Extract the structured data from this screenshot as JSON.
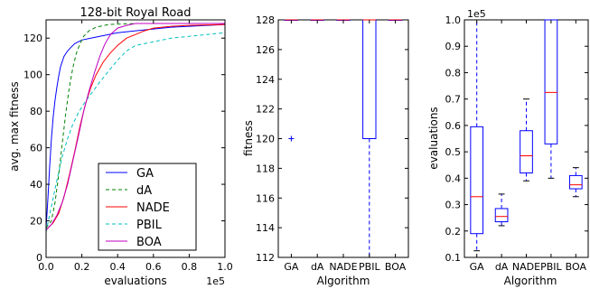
{
  "chart_data": [
    {
      "type": "line",
      "title": "128-bit Royal Road",
      "xlabel": "evaluations",
      "ylabel": "avg. max fitness",
      "x_offset_label": "1e5",
      "xlim": [
        0,
        1.0
      ],
      "ylim": [
        0,
        130
      ],
      "x_ticks": [
        "0.0",
        "0.2",
        "0.4",
        "0.6",
        "0.8",
        "1.0"
      ],
      "y_ticks": [
        "0",
        "20",
        "40",
        "60",
        "80",
        "100",
        "120"
      ],
      "legend_position": "lower-right",
      "series": [
        {
          "name": "GA",
          "color": "#0000ff",
          "dash": "solid",
          "x": [
            0,
            0.01,
            0.02,
            0.03,
            0.04,
            0.05,
            0.06,
            0.07,
            0.08,
            0.1,
            0.12,
            0.14,
            0.16,
            0.2,
            0.25,
            0.3,
            0.35,
            0.4,
            0.5,
            0.6,
            0.7,
            0.8,
            0.9,
            1.0
          ],
          "y": [
            16,
            32,
            50,
            65,
            77,
            86,
            93,
            99,
            104,
            110,
            113,
            115,
            117,
            119,
            120,
            121,
            122,
            123,
            124,
            125,
            126,
            126.5,
            127,
            127.5
          ]
        },
        {
          "name": "dA",
          "color": "#008000",
          "dash": "dashed",
          "x": [
            0,
            0.03,
            0.05,
            0.07,
            0.09,
            0.11,
            0.13,
            0.15,
            0.17,
            0.19,
            0.21,
            0.24,
            0.28,
            0.35,
            0.5,
            1.0
          ],
          "y": [
            16,
            20,
            30,
            45,
            62,
            79,
            93,
            104,
            112,
            117,
            121,
            124,
            126,
            127.5,
            128,
            128
          ]
        },
        {
          "name": "NADE",
          "color": "#ff0000",
          "dash": "solid",
          "x": [
            0,
            0.04,
            0.07,
            0.1,
            0.13,
            0.16,
            0.19,
            0.22,
            0.25,
            0.28,
            0.32,
            0.36,
            0.4,
            0.45,
            0.5,
            0.55,
            0.6,
            0.7,
            0.8,
            1.0
          ],
          "y": [
            15,
            19,
            24,
            33,
            45,
            58,
            72,
            84,
            93,
            100,
            107,
            112,
            116,
            120,
            122,
            124,
            125.5,
            126.5,
            127,
            127.5
          ]
        },
        {
          "name": "PBIL",
          "color": "#00bfbf",
          "dash": "dashed",
          "x": [
            0,
            0.03,
            0.06,
            0.09,
            0.12,
            0.15,
            0.18,
            0.21,
            0.24,
            0.27,
            0.3,
            0.35,
            0.4,
            0.45,
            0.5,
            0.6,
            0.7,
            0.8,
            0.9,
            1.0
          ],
          "y": [
            14,
            28,
            42,
            55,
            65,
            73,
            79,
            84,
            88,
            92,
            96,
            102,
            108,
            113,
            116,
            118,
            120,
            121,
            122,
            123
          ]
        },
        {
          "name": "BOA",
          "color": "#bf00bf",
          "dash": "solid",
          "x": [
            0,
            0.03,
            0.06,
            0.09,
            0.12,
            0.15,
            0.18,
            0.21,
            0.24,
            0.27,
            0.3,
            0.33,
            0.36,
            0.4,
            0.45,
            0.5,
            0.6,
            1.0
          ],
          "y": [
            15,
            18,
            23,
            30,
            40,
            53,
            66,
            80,
            91,
            101,
            110,
            117,
            122,
            125.5,
            127,
            128,
            128,
            128
          ]
        }
      ]
    },
    {
      "type": "box",
      "xlabel": "Algorithm",
      "ylabel": "fitness",
      "ylim": [
        112,
        128
      ],
      "y_ticks": [
        "112",
        "114",
        "116",
        "118",
        "120",
        "122",
        "124",
        "126",
        "128"
      ],
      "categories": [
        "GA",
        "dA",
        "NADE",
        "PBIL",
        "BOA"
      ],
      "color": "#0000ff",
      "median_color": "#ff0000",
      "boxes": [
        {
          "whislo": 128,
          "q1": 128,
          "med": 128,
          "q3": 128,
          "whishi": 128,
          "fliers": [
            120
          ]
        },
        {
          "whislo": 128,
          "q1": 128,
          "med": 128,
          "q3": 128,
          "whishi": 128,
          "fliers": []
        },
        {
          "whislo": 128,
          "q1": 128,
          "med": 128,
          "q3": 128,
          "whishi": 128,
          "fliers": []
        },
        {
          "whislo": 112,
          "q1": 120,
          "med": 128,
          "q3": 128,
          "whishi": 128,
          "fliers": []
        },
        {
          "whislo": 128,
          "q1": 128,
          "med": 128,
          "q3": 128,
          "whishi": 128,
          "fliers": []
        }
      ]
    },
    {
      "type": "box",
      "xlabel": "Algorithm",
      "ylabel": "evaluations",
      "y_offset_label": "1e5",
      "ylim": [
        0.1,
        1.0
      ],
      "y_ticks": [
        "0.1",
        "0.2",
        "0.3",
        "0.4",
        "0.5",
        "0.6",
        "0.7",
        "0.8",
        "0.9",
        "1.0"
      ],
      "categories": [
        "GA",
        "dA",
        "NADE",
        "PBIL",
        "BOA"
      ],
      "color": "#0000ff",
      "median_color": "#ff0000",
      "boxes": [
        {
          "whislo": 0.125,
          "q1": 0.19,
          "med": 0.33,
          "q3": 0.595,
          "whishi": 1.0,
          "fliers": []
        },
        {
          "whislo": 0.22,
          "q1": 0.235,
          "med": 0.255,
          "q3": 0.285,
          "whishi": 0.34,
          "fliers": []
        },
        {
          "whislo": 0.39,
          "q1": 0.42,
          "med": 0.485,
          "q3": 0.58,
          "whishi": 0.7,
          "fliers": []
        },
        {
          "whislo": 0.4,
          "q1": 0.53,
          "med": 0.725,
          "q3": 1.0,
          "whishi": 1.0,
          "fliers": []
        },
        {
          "whislo": 0.33,
          "q1": 0.36,
          "med": 0.375,
          "q3": 0.41,
          "whishi": 0.44,
          "fliers": []
        }
      ]
    }
  ]
}
